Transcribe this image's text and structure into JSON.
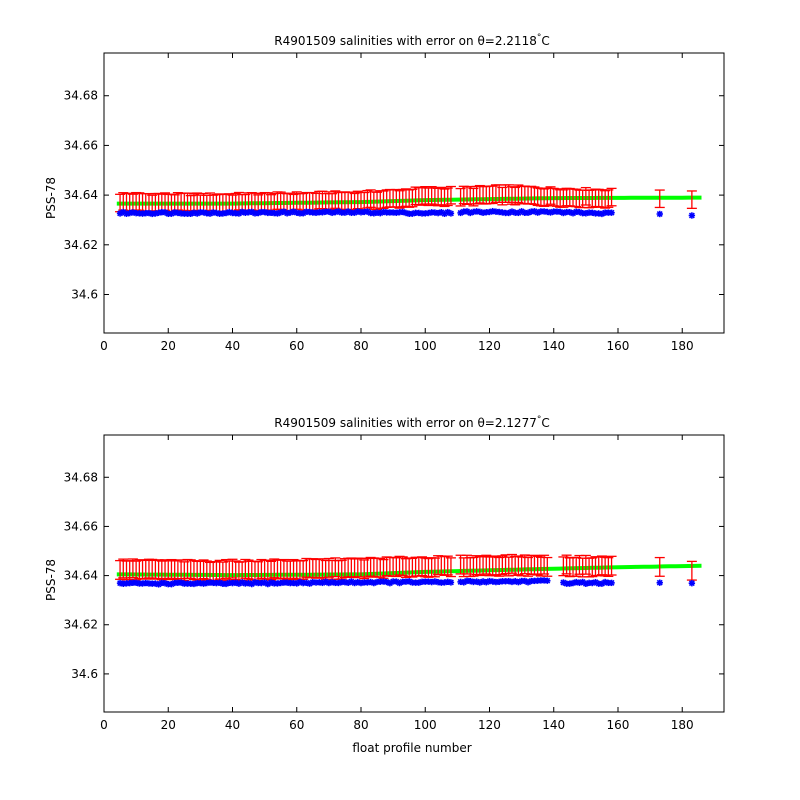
{
  "figure": {
    "xlabel": "float profile number"
  },
  "chart_data": [
    {
      "type": "scatter",
      "title_main": "R4901509 salinities with error on ",
      "title_theta": "θ",
      "title_value": "=2.2118",
      "title_deg": "°",
      "title_unit": "C",
      "xlabel": "",
      "ylabel": "PSS-78",
      "xlim": [
        0,
        193
      ],
      "ylim": [
        34.5845,
        34.6972
      ],
      "xticks": [
        0,
        20,
        40,
        60,
        80,
        100,
        120,
        140,
        160,
        180
      ],
      "yticks": [
        34.6,
        34.62,
        34.64,
        34.66,
        34.68
      ],
      "ytick_labels": [
        "34.6",
        "34.62",
        "34.64",
        "34.66",
        "34.68"
      ],
      "grid": false,
      "colors": {
        "float": "#0000ff",
        "error": "#ff0000",
        "fit": "#00ff00"
      },
      "series": [
        {
          "key": "float",
          "segments": [
            [
              5,
              108
            ],
            [
              111,
              158
            ]
          ],
          "isolated": [
            [
              173,
              34.6324
            ],
            [
              183,
              34.6318
            ]
          ],
          "level_points": [
            [
              5,
              34.6328
            ],
            [
              40,
              34.6329
            ],
            [
              80,
              34.6331
            ],
            [
              100,
              34.6328
            ],
            [
              108,
              34.6328
            ],
            [
              111,
              34.6332
            ],
            [
              140,
              34.6332
            ],
            [
              158,
              34.6326
            ]
          ]
        },
        {
          "key": "error",
          "segments": [
            [
              5,
              108
            ],
            [
              111,
              158
            ]
          ],
          "isolated": [
            173,
            183
          ],
          "level_points": [
            [
              5,
              34.6372
            ],
            [
              30,
              34.6368
            ],
            [
              60,
              34.6373
            ],
            [
              80,
              34.6378
            ],
            [
              90,
              34.6385
            ],
            [
              100,
              34.6395
            ],
            [
              108,
              34.6395
            ],
            [
              111,
              34.6395
            ],
            [
              125,
              34.6402
            ],
            [
              140,
              34.6393
            ],
            [
              158,
              34.6387
            ],
            [
              183,
              34.6385
            ]
          ],
          "half_error": 0.0035
        },
        {
          "key": "fit",
          "x_range": [
            4,
            186
          ],
          "level_points": [
            [
              4,
              34.6366
            ],
            [
              40,
              34.6366
            ],
            [
              80,
              34.6372
            ],
            [
              100,
              34.638
            ],
            [
              140,
              34.6388
            ],
            [
              186,
              34.639
            ]
          ]
        }
      ]
    },
    {
      "type": "scatter",
      "title_main": "R4901509 salinities with error on ",
      "title_theta": "θ",
      "title_value": "=2.1277",
      "title_deg": "°",
      "title_unit": "C",
      "xlabel": "float profile number",
      "ylabel": "PSS-78",
      "xlim": [
        0,
        193
      ],
      "ylim": [
        34.5845,
        34.6972
      ],
      "xticks": [
        0,
        20,
        40,
        60,
        80,
        100,
        120,
        140,
        160,
        180
      ],
      "yticks": [
        34.6,
        34.62,
        34.64,
        34.66,
        34.68
      ],
      "ytick_labels": [
        "34.6",
        "34.62",
        "34.64",
        "34.66",
        "34.68"
      ],
      "grid": false,
      "colors": {
        "float": "#0000ff",
        "error": "#ff0000",
        "fit": "#00ff00"
      },
      "series": [
        {
          "key": "float",
          "segments": [
            [
              5,
              108
            ],
            [
              111,
              138
            ],
            [
              143,
              158
            ]
          ],
          "isolated": [
            [
              173,
              34.6371
            ],
            [
              183,
              34.6369
            ]
          ],
          "level_points": [
            [
              5,
              34.6368
            ],
            [
              40,
              34.6368
            ],
            [
              80,
              34.6373
            ],
            [
              100,
              34.6373
            ],
            [
              108,
              34.6372
            ],
            [
              111,
              34.6375
            ],
            [
              138,
              34.6377
            ],
            [
              143,
              34.6371
            ],
            [
              158,
              34.637
            ]
          ]
        },
        {
          "key": "error",
          "segments": [
            [
              5,
              108
            ],
            [
              111,
              138
            ],
            [
              143,
              158
            ]
          ],
          "isolated": [
            173,
            183
          ],
          "level_points": [
            [
              5,
              34.6425
            ],
            [
              30,
              34.6421
            ],
            [
              60,
              34.6425
            ],
            [
              80,
              34.643
            ],
            [
              100,
              34.6437
            ],
            [
              108,
              34.6437
            ],
            [
              111,
              34.6439
            ],
            [
              125,
              34.6442
            ],
            [
              140,
              34.644
            ],
            [
              158,
              34.6437
            ],
            [
              173,
              34.6434
            ],
            [
              183,
              34.6422
            ]
          ],
          "half_error": 0.0038
        },
        {
          "key": "fit",
          "x_range": [
            4,
            186
          ],
          "level_points": [
            [
              4,
              34.6405
            ],
            [
              40,
              34.6402
            ],
            [
              80,
              34.6405
            ],
            [
              100,
              34.6415
            ],
            [
              140,
              34.6428
            ],
            [
              160,
              34.6434
            ],
            [
              186,
              34.644
            ]
          ]
        }
      ]
    }
  ]
}
